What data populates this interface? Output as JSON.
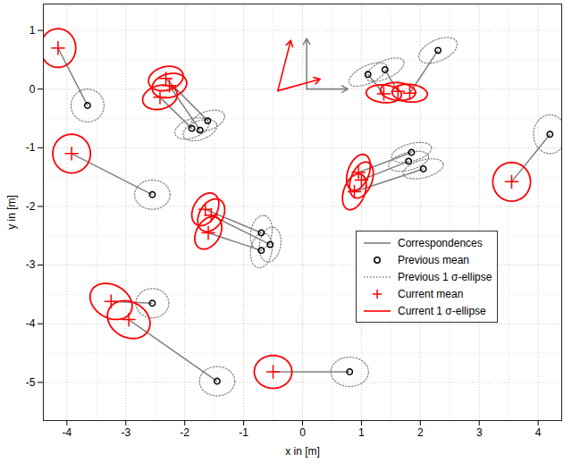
{
  "chart_data": {
    "type": "scatter",
    "xlabel": "x in [m]",
    "ylabel": "y in [m]",
    "xlim": [
      -4.4,
      4.4
    ],
    "ylim": [
      -5.65,
      1.45
    ],
    "xticks": [
      -4,
      -3,
      -2,
      -1,
      0,
      1,
      2,
      3,
      4
    ],
    "yticks": [
      -5,
      -4,
      -3,
      -2,
      -1,
      0,
      1
    ],
    "grid": true,
    "legend": "east",
    "series": [
      {
        "name": "Correspondences",
        "type": "line",
        "color": "#808080",
        "line_style": "solid"
      },
      {
        "name": "Previous mean",
        "type": "scatter",
        "color": "#000000",
        "marker": "circle",
        "x": [
          -3.65,
          -1.88,
          -1.74,
          -1.61,
          1.11,
          1.4,
          2.3,
          4.2,
          -2.55,
          1.85,
          1.8,
          2.05,
          -0.7,
          -0.55,
          -0.7,
          -2.55,
          -1.45,
          0.8
        ],
        "y": [
          -0.28,
          -0.67,
          -0.7,
          -0.54,
          0.25,
          0.33,
          0.66,
          -0.77,
          -1.8,
          -1.08,
          -1.23,
          -1.36,
          -2.45,
          -2.65,
          -2.75,
          -3.65,
          -4.98,
          -4.82
        ]
      },
      {
        "name": "Previous 1 σ-ellipse",
        "type": "ellipse",
        "color": "#808080",
        "line_style": "dotted",
        "rx": [
          0.28,
          0.3,
          0.3,
          0.3,
          0.35,
          0.35,
          0.35,
          0.28,
          0.3,
          0.35,
          0.35,
          0.35,
          0.3,
          0.3,
          0.3,
          0.28,
          0.3,
          0.32
        ],
        "ry": [
          0.28,
          0.16,
          0.16,
          0.16,
          0.15,
          0.15,
          0.18,
          0.33,
          0.25,
          0.15,
          0.15,
          0.15,
          0.18,
          0.18,
          0.18,
          0.25,
          0.25,
          0.25
        ],
        "angle": [
          0,
          20,
          20,
          20,
          25,
          25,
          25,
          0,
          0,
          15,
          15,
          15,
          80,
          80,
          80,
          0,
          0,
          0
        ]
      },
      {
        "name": "Current mean",
        "type": "scatter",
        "color": "#ff0000",
        "marker": "plus",
        "x": [
          -4.15,
          -2.42,
          -2.26,
          -2.32,
          1.38,
          1.62,
          1.82,
          3.55,
          -3.92,
          0.95,
          1.0,
          0.88,
          -1.65,
          -1.55,
          -1.6,
          -3.25,
          -2.95,
          -0.5
        ],
        "y": [
          0.7,
          -0.14,
          0.06,
          0.18,
          -0.08,
          -0.04,
          -0.07,
          -1.58,
          -1.1,
          -1.42,
          -1.55,
          -1.75,
          -2.05,
          -2.15,
          -2.45,
          -3.62,
          -3.93,
          -4.82
        ]
      },
      {
        "name": "Current 1 σ-ellipse",
        "type": "ellipse",
        "color": "#ff0000",
        "line_style": "solid",
        "rx": [
          0.3,
          0.3,
          0.3,
          0.3,
          0.3,
          0.3,
          0.3,
          0.32,
          0.32,
          0.32,
          0.32,
          0.32,
          0.3,
          0.3,
          0.3,
          0.38,
          0.38,
          0.32
        ],
        "ry": [
          0.33,
          0.2,
          0.2,
          0.2,
          0.15,
          0.15,
          0.15,
          0.33,
          0.33,
          0.18,
          0.18,
          0.18,
          0.2,
          0.2,
          0.2,
          0.28,
          0.3,
          0.28
        ],
        "angle": [
          0,
          15,
          15,
          15,
          -5,
          -5,
          -5,
          0,
          0,
          70,
          70,
          70,
          60,
          60,
          60,
          -30,
          -30,
          0
        ]
      }
    ],
    "frames": [
      {
        "color": "#808080",
        "x": 0.07,
        "y": 0,
        "ux": 0.77,
        "uy": 0,
        "vx": 0.07,
        "vy": 0.86
      },
      {
        "color": "#ff0000",
        "x": -0.42,
        "y": -0.03,
        "ux": 0.3,
        "uy": 0.17,
        "vx": -0.2,
        "vy": 0.83
      }
    ]
  }
}
